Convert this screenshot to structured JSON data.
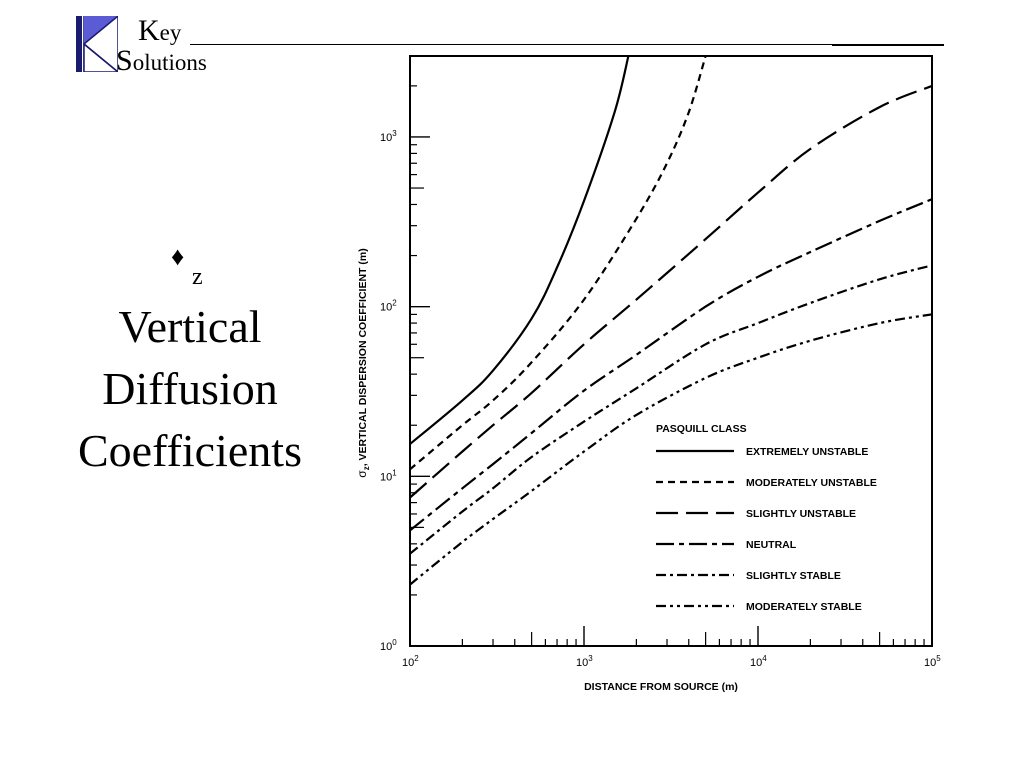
{
  "logo": {
    "word1": "Key",
    "word2": "Solutions",
    "colors": {
      "accent": "#5b5bd6",
      "dark": "#1a1a6e"
    }
  },
  "slide": {
    "symbol": "♦",
    "symbol_sub": "z",
    "title_lines": [
      "Vertical",
      "Diffusion",
      "Coefficients"
    ]
  },
  "chart_data": {
    "type": "line",
    "title": "",
    "xlabel": "DISTANCE FROM SOURCE (m)",
    "ylabel_sigma": "σ",
    "ylabel_sub": "z",
    "ylabel_text": ", VERTICAL DISPERSION COEFFICIENT (m)",
    "xscale": "log",
    "yscale": "log",
    "xlim": [
      100,
      100000
    ],
    "ylim": [
      1,
      3000
    ],
    "x_ticks": [
      {
        "base": "10",
        "exp": "2",
        "value": 100
      },
      {
        "base": "10",
        "exp": "3",
        "value": 1000
      },
      {
        "base": "10",
        "exp": "4",
        "value": 10000
      },
      {
        "base": "10",
        "exp": "5",
        "value": 100000
      }
    ],
    "y_ticks": [
      {
        "base": "10",
        "exp": "0",
        "value": 1
      },
      {
        "base": "10",
        "exp": "1",
        "value": 10
      },
      {
        "base": "10",
        "exp": "2",
        "value": 100
      },
      {
        "base": "10",
        "exp": "3",
        "value": 1000
      }
    ],
    "legend_title": "PASQUILL CLASS",
    "legend_position": "lower-right",
    "series": [
      {
        "name": "EXTREMELY UNSTABLE",
        "dash": "solid",
        "points": [
          [
            100,
            15.5
          ],
          [
            200,
            28
          ],
          [
            300,
            42
          ],
          [
            500,
            85
          ],
          [
            700,
            170
          ],
          [
            1000,
            420
          ],
          [
            1500,
            1400
          ],
          [
            1800,
            3000
          ]
        ]
      },
      {
        "name": "MODERATELY UNSTABLE",
        "dash": "short",
        "points": [
          [
            100,
            11
          ],
          [
            200,
            20
          ],
          [
            300,
            28
          ],
          [
            500,
            47
          ],
          [
            1000,
            110
          ],
          [
            2000,
            330
          ],
          [
            3000,
            700
          ],
          [
            4000,
            1400
          ],
          [
            5000,
            3000
          ]
        ]
      },
      {
        "name": "SLIGHTLY UNSTABLE",
        "dash": "long",
        "points": [
          [
            100,
            7.5
          ],
          [
            200,
            14
          ],
          [
            300,
            20
          ],
          [
            500,
            31
          ],
          [
            1000,
            60
          ],
          [
            2000,
            110
          ],
          [
            5000,
            250
          ],
          [
            10000,
            470
          ],
          [
            20000,
            850
          ],
          [
            50000,
            1500
          ],
          [
            100000,
            2000
          ]
        ]
      },
      {
        "name": "NEUTRAL",
        "dash": "dash-dot-long",
        "points": [
          [
            100,
            4.8
          ],
          [
            200,
            8.5
          ],
          [
            300,
            11.8
          ],
          [
            500,
            18
          ],
          [
            1000,
            32
          ],
          [
            2000,
            52
          ],
          [
            5000,
            100
          ],
          [
            10000,
            150
          ],
          [
            20000,
            210
          ],
          [
            50000,
            320
          ],
          [
            100000,
            430
          ]
        ]
      },
      {
        "name": "SLIGHTLY STABLE",
        "dash": "dash-dot",
        "points": [
          [
            100,
            3.5
          ],
          [
            200,
            6.2
          ],
          [
            300,
            8.5
          ],
          [
            500,
            13
          ],
          [
            1000,
            21
          ],
          [
            2000,
            33
          ],
          [
            5000,
            60
          ],
          [
            10000,
            80
          ],
          [
            20000,
            105
          ],
          [
            50000,
            145
          ],
          [
            100000,
            175
          ]
        ]
      },
      {
        "name": "MODERATELY STABLE",
        "dash": "dash-dot-dot",
        "points": [
          [
            100,
            2.3
          ],
          [
            200,
            4.1
          ],
          [
            300,
            5.6
          ],
          [
            500,
            8.2
          ],
          [
            1000,
            14
          ],
          [
            2000,
            23
          ],
          [
            5000,
            38
          ],
          [
            10000,
            50
          ],
          [
            20000,
            63
          ],
          [
            50000,
            80
          ],
          [
            100000,
            90
          ]
        ]
      }
    ]
  }
}
